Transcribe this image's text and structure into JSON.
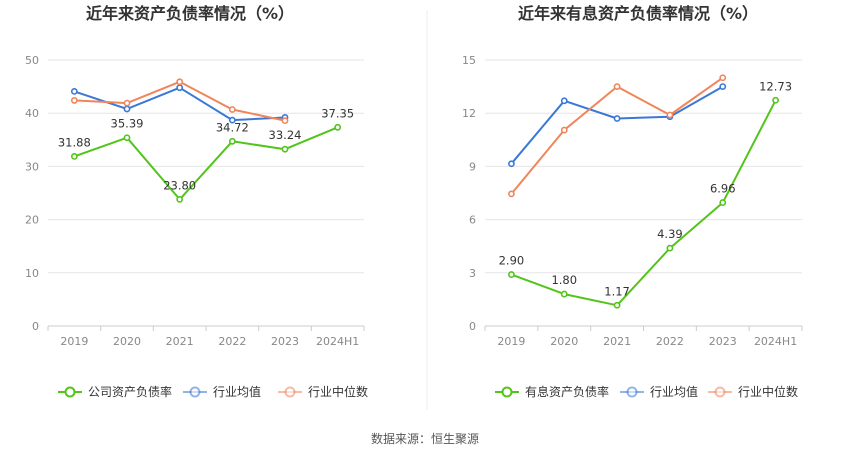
{
  "chart_data": [
    {
      "type": "line",
      "title": "近年来资产负债率情况（%）",
      "categories": [
        "2019",
        "2020",
        "2021",
        "2022",
        "2023",
        "2024H1"
      ],
      "ylim": [
        0,
        50
      ],
      "yticks": [
        "0",
        "10",
        "20",
        "30",
        "40",
        "50"
      ],
      "grid": true,
      "legend_position": "bottom",
      "series": [
        {
          "name": "公司资产负债率",
          "color": "#52c41a",
          "values": [
            31.88,
            35.39,
            23.8,
            34.72,
            33.24,
            37.35
          ],
          "labels": [
            "31.88",
            "35.39",
            "23.80",
            "34.72",
            "33.24",
            "37.35"
          ]
        },
        {
          "name": "行业均值",
          "color": "#3a78d8",
          "values": [
            44.1,
            40.8,
            44.8,
            38.7,
            39.2,
            null
          ]
        },
        {
          "name": "行业中位数",
          "color": "#f0855a",
          "values": [
            42.4,
            41.9,
            45.9,
            40.7,
            38.6,
            null
          ]
        }
      ]
    },
    {
      "type": "line",
      "title": "近年来有息资产负债率情况（%）",
      "categories": [
        "2019",
        "2020",
        "2021",
        "2022",
        "2023",
        "2024H1"
      ],
      "ylim": [
        0,
        15
      ],
      "yticks": [
        "0",
        "3",
        "6",
        "9",
        "12",
        "15"
      ],
      "grid": true,
      "legend_position": "bottom",
      "series": [
        {
          "name": "有息资产负债率",
          "color": "#52c41a",
          "values": [
            2.9,
            1.8,
            1.17,
            4.39,
            6.96,
            12.73
          ],
          "labels": [
            "2.90",
            "1.80",
            "1.17",
            "4.39",
            "6.96",
            "12.73"
          ]
        },
        {
          "name": "行业均值",
          "color": "#3a78d8",
          "values": [
            9.15,
            12.7,
            11.7,
            11.8,
            13.5,
            null
          ]
        },
        {
          "name": "行业中位数",
          "color": "#f0855a",
          "values": [
            7.45,
            11.05,
            13.5,
            11.9,
            14.0,
            null
          ]
        }
      ]
    }
  ],
  "source": "数据来源：恒生聚源"
}
